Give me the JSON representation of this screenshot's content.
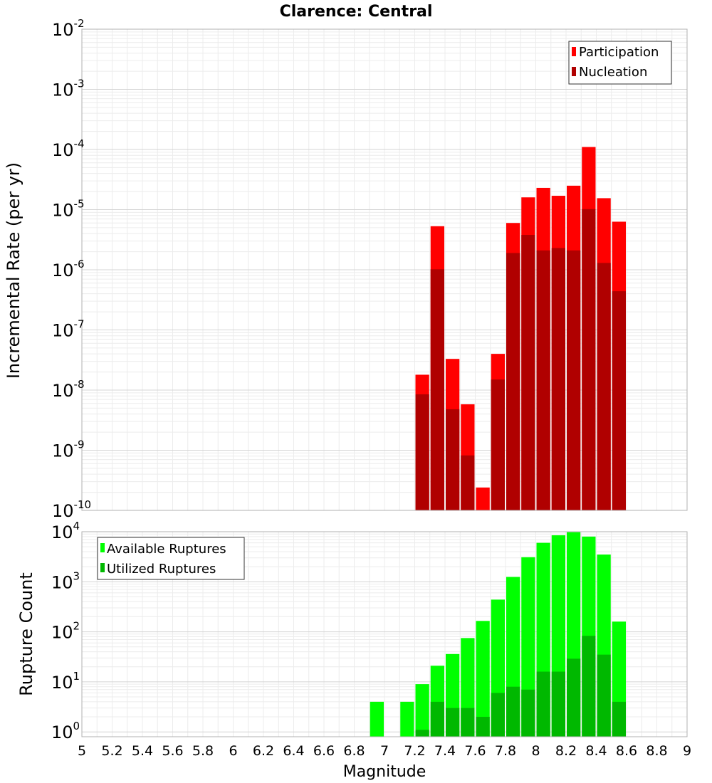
{
  "chart_data": [
    {
      "type": "bar",
      "title": "Clarence: Central",
      "xlabel": "",
      "ylabel": "Incremental Rate (per yr)",
      "yscale": "log",
      "ylim_exp": [
        -10,
        -2
      ],
      "xlim": [
        5,
        9
      ],
      "bin_width": 0.1,
      "grid": true,
      "legend_position": "top-right",
      "series": [
        {
          "name": "Participation",
          "color": "#ff0000",
          "x": [
            7.25,
            7.35,
            7.45,
            7.55,
            7.65,
            7.75,
            7.85,
            7.95,
            8.05,
            8.15,
            8.25,
            8.35,
            8.45,
            8.55
          ],
          "values": [
            1.8e-08,
            5.3e-06,
            3.3e-08,
            5.8e-09,
            2.4e-10,
            4e-08,
            6e-06,
            1.6e-05,
            2.3e-05,
            1.7e-05,
            2.5e-05,
            0.00011,
            1.55e-05,
            6.3e-06
          ]
        },
        {
          "name": "Nucleation",
          "color": "#b00000",
          "x": [
            7.25,
            7.35,
            7.45,
            7.55,
            7.75,
            7.85,
            7.95,
            8.05,
            8.15,
            8.25,
            8.35,
            8.45,
            8.55
          ],
          "values": [
            8.5e-09,
            1.02e-06,
            4.8e-09,
            8.2e-10,
            1.5e-08,
            1.9e-06,
            3.8e-06,
            2.1e-06,
            2.3e-06,
            2.1e-06,
            1.02e-05,
            1.3e-06,
            4.4e-07
          ]
        }
      ],
      "ytick_labels": [
        {
          "base": "10",
          "exp": "-10"
        },
        {
          "base": "10",
          "exp": "-9"
        },
        {
          "base": "10",
          "exp": "-8"
        },
        {
          "base": "10",
          "exp": "-7"
        },
        {
          "base": "10",
          "exp": "-6"
        },
        {
          "base": "10",
          "exp": "-5"
        },
        {
          "base": "10",
          "exp": "-4"
        },
        {
          "base": "10",
          "exp": "-3"
        },
        {
          "base": "10",
          "exp": "-2"
        }
      ]
    },
    {
      "type": "bar",
      "title": "",
      "xlabel": "Magnitude",
      "ylabel": "Rupture Count",
      "yscale": "log",
      "ylim": [
        0.8,
        10000
      ],
      "xlim": [
        5,
        9
      ],
      "bin_width": 0.1,
      "grid": true,
      "legend_position": "top-left",
      "series": [
        {
          "name": "Available Ruptures",
          "color": "#00ff00",
          "x": [
            6.95,
            7.15,
            7.25,
            7.35,
            7.45,
            7.55,
            7.65,
            7.75,
            7.85,
            7.95,
            8.05,
            8.15,
            8.25,
            8.35,
            8.45,
            8.55
          ],
          "values": [
            4,
            4,
            9,
            21,
            36,
            75,
            165,
            440,
            1250,
            3100,
            6000,
            8500,
            9800,
            8000,
            3500,
            160
          ]
        },
        {
          "name": "Utilized Ruptures",
          "color": "#00b800",
          "x": [
            7.25,
            7.35,
            7.45,
            7.55,
            7.65,
            7.75,
            7.85,
            7.95,
            8.05,
            8.15,
            8.25,
            8.35,
            8.45,
            8.55
          ],
          "values": [
            1.1,
            4,
            3,
            3,
            2,
            6,
            8,
            7,
            16,
            16,
            29,
            83,
            35,
            4
          ]
        }
      ],
      "ytick_labels": [
        {
          "base": "10",
          "exp": "0"
        },
        {
          "base": "10",
          "exp": "1"
        },
        {
          "base": "10",
          "exp": "2"
        },
        {
          "base": "10",
          "exp": "3"
        },
        {
          "base": "10",
          "exp": "4"
        }
      ],
      "xtick_labels": [
        "5",
        "5.2",
        "5.4",
        "5.6",
        "5.8",
        "6",
        "6.2",
        "6.4",
        "6.6",
        "6.8",
        "7",
        "7.2",
        "7.4",
        "7.6",
        "7.8",
        "8",
        "8.2",
        "8.4",
        "8.6",
        "8.8",
        "9"
      ]
    }
  ]
}
